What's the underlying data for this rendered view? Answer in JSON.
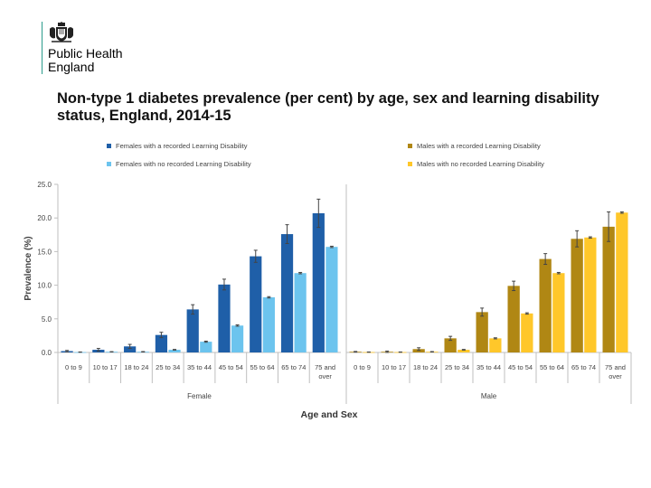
{
  "logo": {
    "line1": "Public Health",
    "line2": "England",
    "emblem": "royal-crest-icon"
  },
  "slide": {
    "title": "Non-type 1 diabetes prevalence (per cent) by age, sex and learning disability status, England, 2014-15"
  },
  "chart_data": {
    "type": "bar",
    "title": "Non-type 1 diabetes prevalence (per cent) by age, sex and learning disability status, England, 2014-15",
    "xlabel": "Age and Sex",
    "ylabel": "Prevalence (%)",
    "ylim": [
      0,
      25
    ],
    "yticks": [
      "0.0",
      "5.0",
      "10.0",
      "15.0",
      "20.0",
      "25.0"
    ],
    "grid": false,
    "categories": [
      "0 to 9",
      "10 to 17",
      "18 to 24",
      "25 to 34",
      "35 to 44",
      "45 to 54",
      "55 to 64",
      "65 to 74",
      "75 and over"
    ],
    "panels": [
      {
        "name": "Female",
        "series": [
          {
            "name": "Females with a recorded Learning Disability",
            "color": "#1f5fa8",
            "values": [
              0.2,
              0.4,
              0.9,
              2.6,
              6.4,
              10.1,
              14.3,
              17.6,
              20.7
            ],
            "err": [
              0.1,
              0.2,
              0.3,
              0.4,
              0.7,
              0.8,
              0.9,
              1.4,
              2.1
            ]
          },
          {
            "name": "Females with no recorded Learning Disability",
            "color": "#6cc4ee",
            "values": [
              0.05,
              0.1,
              0.1,
              0.4,
              1.6,
              4.0,
              8.2,
              11.8,
              15.7
            ],
            "err": [
              0.02,
              0.02,
              0.03,
              0.05,
              0.08,
              0.1,
              0.1,
              0.1,
              0.1
            ]
          }
        ]
      },
      {
        "name": "Male",
        "series": [
          {
            "name": "Males with a recorded Learning Disability",
            "color": "#b08714",
            "values": [
              0.1,
              0.1,
              0.5,
              2.1,
              6.0,
              9.9,
              13.9,
              16.9,
              18.7
            ],
            "err": [
              0.05,
              0.1,
              0.2,
              0.3,
              0.6,
              0.7,
              0.8,
              1.2,
              2.2
            ]
          },
          {
            "name": "Males with no recorded Learning Disability",
            "color": "#ffc72a",
            "values": [
              0.05,
              0.05,
              0.1,
              0.4,
              2.1,
              5.8,
              11.8,
              17.1,
              20.8
            ],
            "err": [
              0.02,
              0.02,
              0.03,
              0.05,
              0.08,
              0.1,
              0.1,
              0.1,
              0.1
            ]
          }
        ]
      }
    ]
  }
}
